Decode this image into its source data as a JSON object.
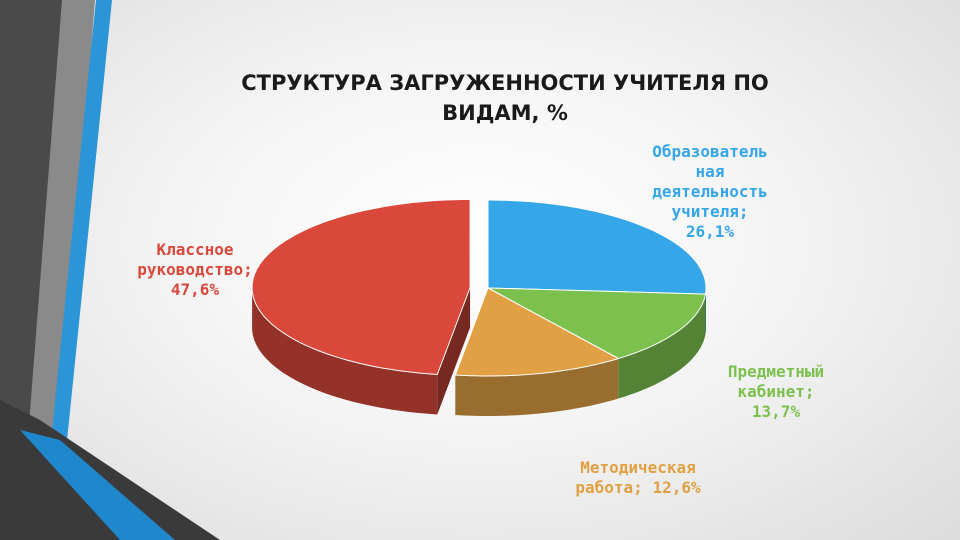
{
  "chart_data": {
    "type": "pie",
    "title": "СТРУКТУРА ЗАГРУЖЕННОСТИ УЧИТЕЛЯ ПО ВИДАМ, %",
    "slices": [
      {
        "name": "Классное руководство",
        "value": 47.6,
        "label": "Классное руководство; 47,6%",
        "color": "#d9483b"
      },
      {
        "name": "Образовательная деятельность учителя",
        "value": 26.1,
        "label": "Образовательная деятельность учителя; 26,1%",
        "color": "#35a6e8"
      },
      {
        "name": "Предметный кабинет",
        "value": 13.7,
        "label": "Предметный кабинет; 13,7%",
        "color": "#7cc04e"
      },
      {
        "name": "Методическая работа",
        "value": 12.6,
        "label": "Методическая работа; 12,6%",
        "color": "#e1a043"
      }
    ],
    "exploded_slice": "Классное руководство",
    "style": "3d"
  },
  "labels": {
    "klass": [
      "Классное",
      "руководство;",
      "47,6%"
    ],
    "obr": [
      "Образователь",
      "ная",
      "деятельность",
      "учителя;",
      "26,1%"
    ],
    "pred": [
      "Предметный",
      "кабинет;",
      "13,7%"
    ],
    "metod": [
      "Методическая",
      "работа; 12,6%"
    ]
  },
  "title_lines": [
    "СТРУКТУРА ЗАГРУЖЕННОСТИ УЧИТЕЛЯ ПО",
    "ВИДАМ, %"
  ]
}
